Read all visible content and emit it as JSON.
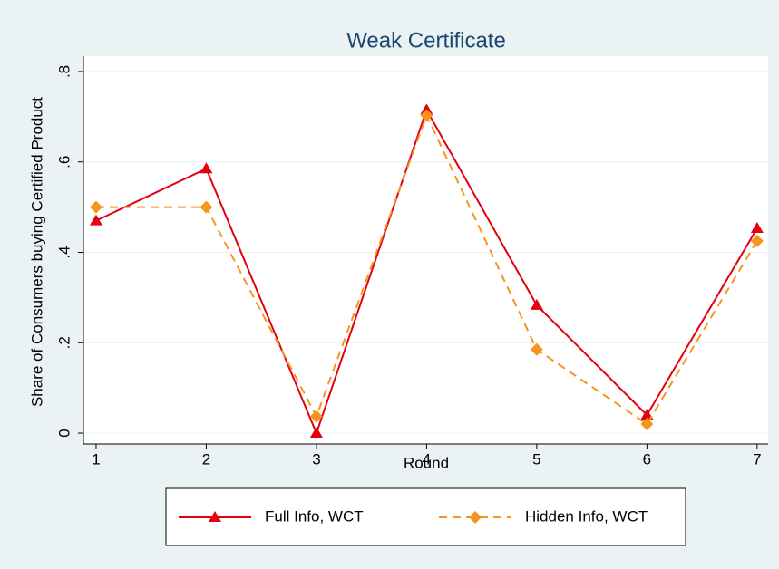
{
  "chart_data": {
    "type": "line",
    "title": "Weak Certificate",
    "x_label": "Round",
    "y_label": "Share of Consumers buying Certified Product",
    "x": [
      1,
      2,
      3,
      4,
      5,
      6,
      7
    ],
    "xlim": [
      0.885,
      7.1
    ],
    "xticks": [
      1,
      2,
      3,
      4,
      5,
      6,
      7
    ],
    "ylim": [
      -0.024,
      0.834
    ],
    "yticks": [
      0,
      {
        "value": 0.2,
        "label": ".2"
      },
      {
        "value": 0.4,
        "label": ".4"
      },
      {
        "value": 0.6,
        "label": ".6"
      },
      {
        "value": 0.8,
        "label": ".8"
      }
    ],
    "grid": true,
    "legend": "bottom",
    "series": [
      {
        "name": "Full Info, WCT",
        "color": "#e3000f",
        "marker": "triangle",
        "dash": false,
        "values": [
          0.47,
          0.585,
          0,
          0.715,
          0.283,
          0.04,
          0.453
        ]
      },
      {
        "name": "Hidden Info, WCT",
        "color": "#f7941d",
        "marker": "diamond",
        "dash": true,
        "values": [
          0.5,
          0.5,
          0.037,
          0.703,
          0.185,
          0.02,
          0.425
        ]
      }
    ]
  }
}
